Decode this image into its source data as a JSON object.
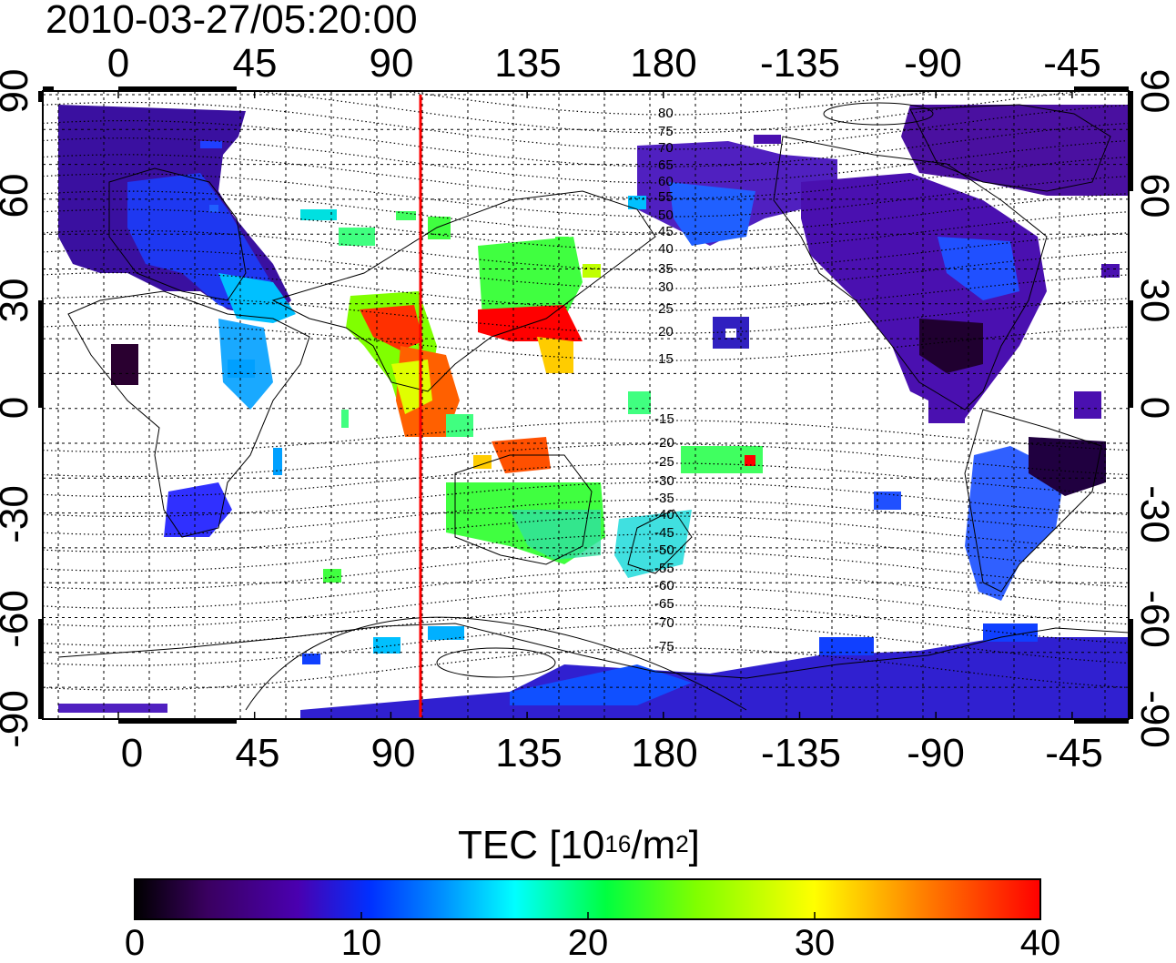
{
  "title": "2010-03-27/05:20:00",
  "axes": {
    "top_ticks": [
      "0",
      "45",
      "90",
      "135",
      "180",
      "-135",
      "-90",
      "-45"
    ],
    "bottom_ticks": [
      "0",
      "45",
      "90",
      "135",
      "180",
      "-135",
      "-90",
      "-45"
    ],
    "left_ticks": [
      "90",
      "60",
      "30",
      "0",
      "-30",
      "-60",
      "-90"
    ],
    "right_ticks": [
      "90",
      "60",
      "30",
      "0",
      "-30",
      "-60",
      "-90"
    ]
  },
  "contour_labels": [
    "80",
    "75",
    "70",
    "65",
    "60",
    "55",
    "50",
    "45",
    "40",
    "35",
    "30",
    "25",
    "20",
    "15",
    "-15",
    "-20",
    "-25",
    "-30",
    "-35",
    "-40",
    "-45",
    "-50",
    "-55",
    "-60",
    "-65",
    "-70",
    "-75"
  ],
  "colorbar": {
    "title": "TEC  [10",
    "title_exp1": "16",
    "title_mid": "/m",
    "title_exp2": "2",
    "title_end": "]",
    "ticks": [
      "0",
      "10",
      "20",
      "30",
      "40"
    ],
    "range": [
      0,
      40
    ],
    "colors": [
      "#000000",
      "#3a0060",
      "#4a00b0",
      "#0030ff",
      "#0090ff",
      "#00ffff",
      "#00ff40",
      "#80ff00",
      "#ffff00",
      "#ff8000",
      "#ff0000"
    ]
  },
  "terminator_color": "#ff0000"
}
